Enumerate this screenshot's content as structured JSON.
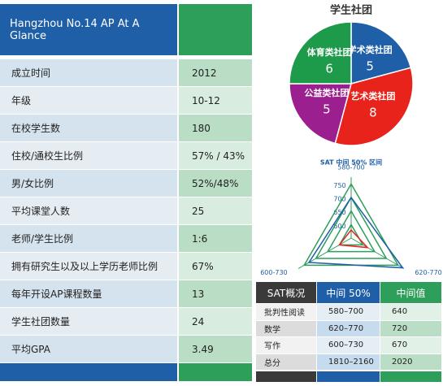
{
  "info_table": {
    "title": "Hangzhou No.14 AP At A Glance",
    "rows": [
      [
        "成立时间",
        "2012"
      ],
      [
        "年级",
        "10-12"
      ],
      [
        "在校学生数",
        "180"
      ],
      [
        "住校/通校生比例",
        "57% / 43%"
      ],
      [
        "男/女比例",
        "52%/48%"
      ],
      [
        "平均课堂人数",
        "25"
      ],
      [
        "老师/学生比例",
        "1:6"
      ],
      [
        "拥有研究生以及以上学历老师比例",
        "67%"
      ],
      [
        "每年开设AP课程数量",
        "13"
      ],
      [
        "学生社团数量",
        "24"
      ],
      [
        "平均GPA",
        "3.49"
      ]
    ]
  },
  "chart_data": [
    {
      "type": "pie",
      "title": "学生社团",
      "categories": [
        "学术类社团",
        "艺术类社团",
        "公益类社团",
        "体育类社团"
      ],
      "values": [
        5,
        8,
        5,
        6
      ],
      "colors": [
        "#1f5fa8",
        "#e8231b",
        "#9b1f8e",
        "#1e9a4b"
      ]
    },
    {
      "type": "radar",
      "title": "SAT 中间 50% 区间",
      "categories": [
        "580-700",
        "620-770",
        "600-730"
      ],
      "rlim": [
        550,
        775
      ],
      "rticks": [
        600,
        650,
        700,
        750
      ],
      "grid_color": "#2e9e5b",
      "series": [
        {
          "color": "#e8231b",
          "values": [
            580,
            620,
            600
          ]
        },
        {
          "color": "#1f5fa8",
          "values": [
            700,
            770,
            730
          ]
        }
      ]
    }
  ],
  "sat_table": {
    "header": [
      "SAT概况",
      "中间 50%",
      "中间值"
    ],
    "rows": [
      [
        "批判性阅读",
        "580–700",
        "640"
      ],
      [
        "数学",
        "620–770",
        "720"
      ],
      [
        "写作",
        "600–730",
        "670"
      ],
      [
        "总分",
        "1810–2160",
        "2020"
      ]
    ]
  }
}
